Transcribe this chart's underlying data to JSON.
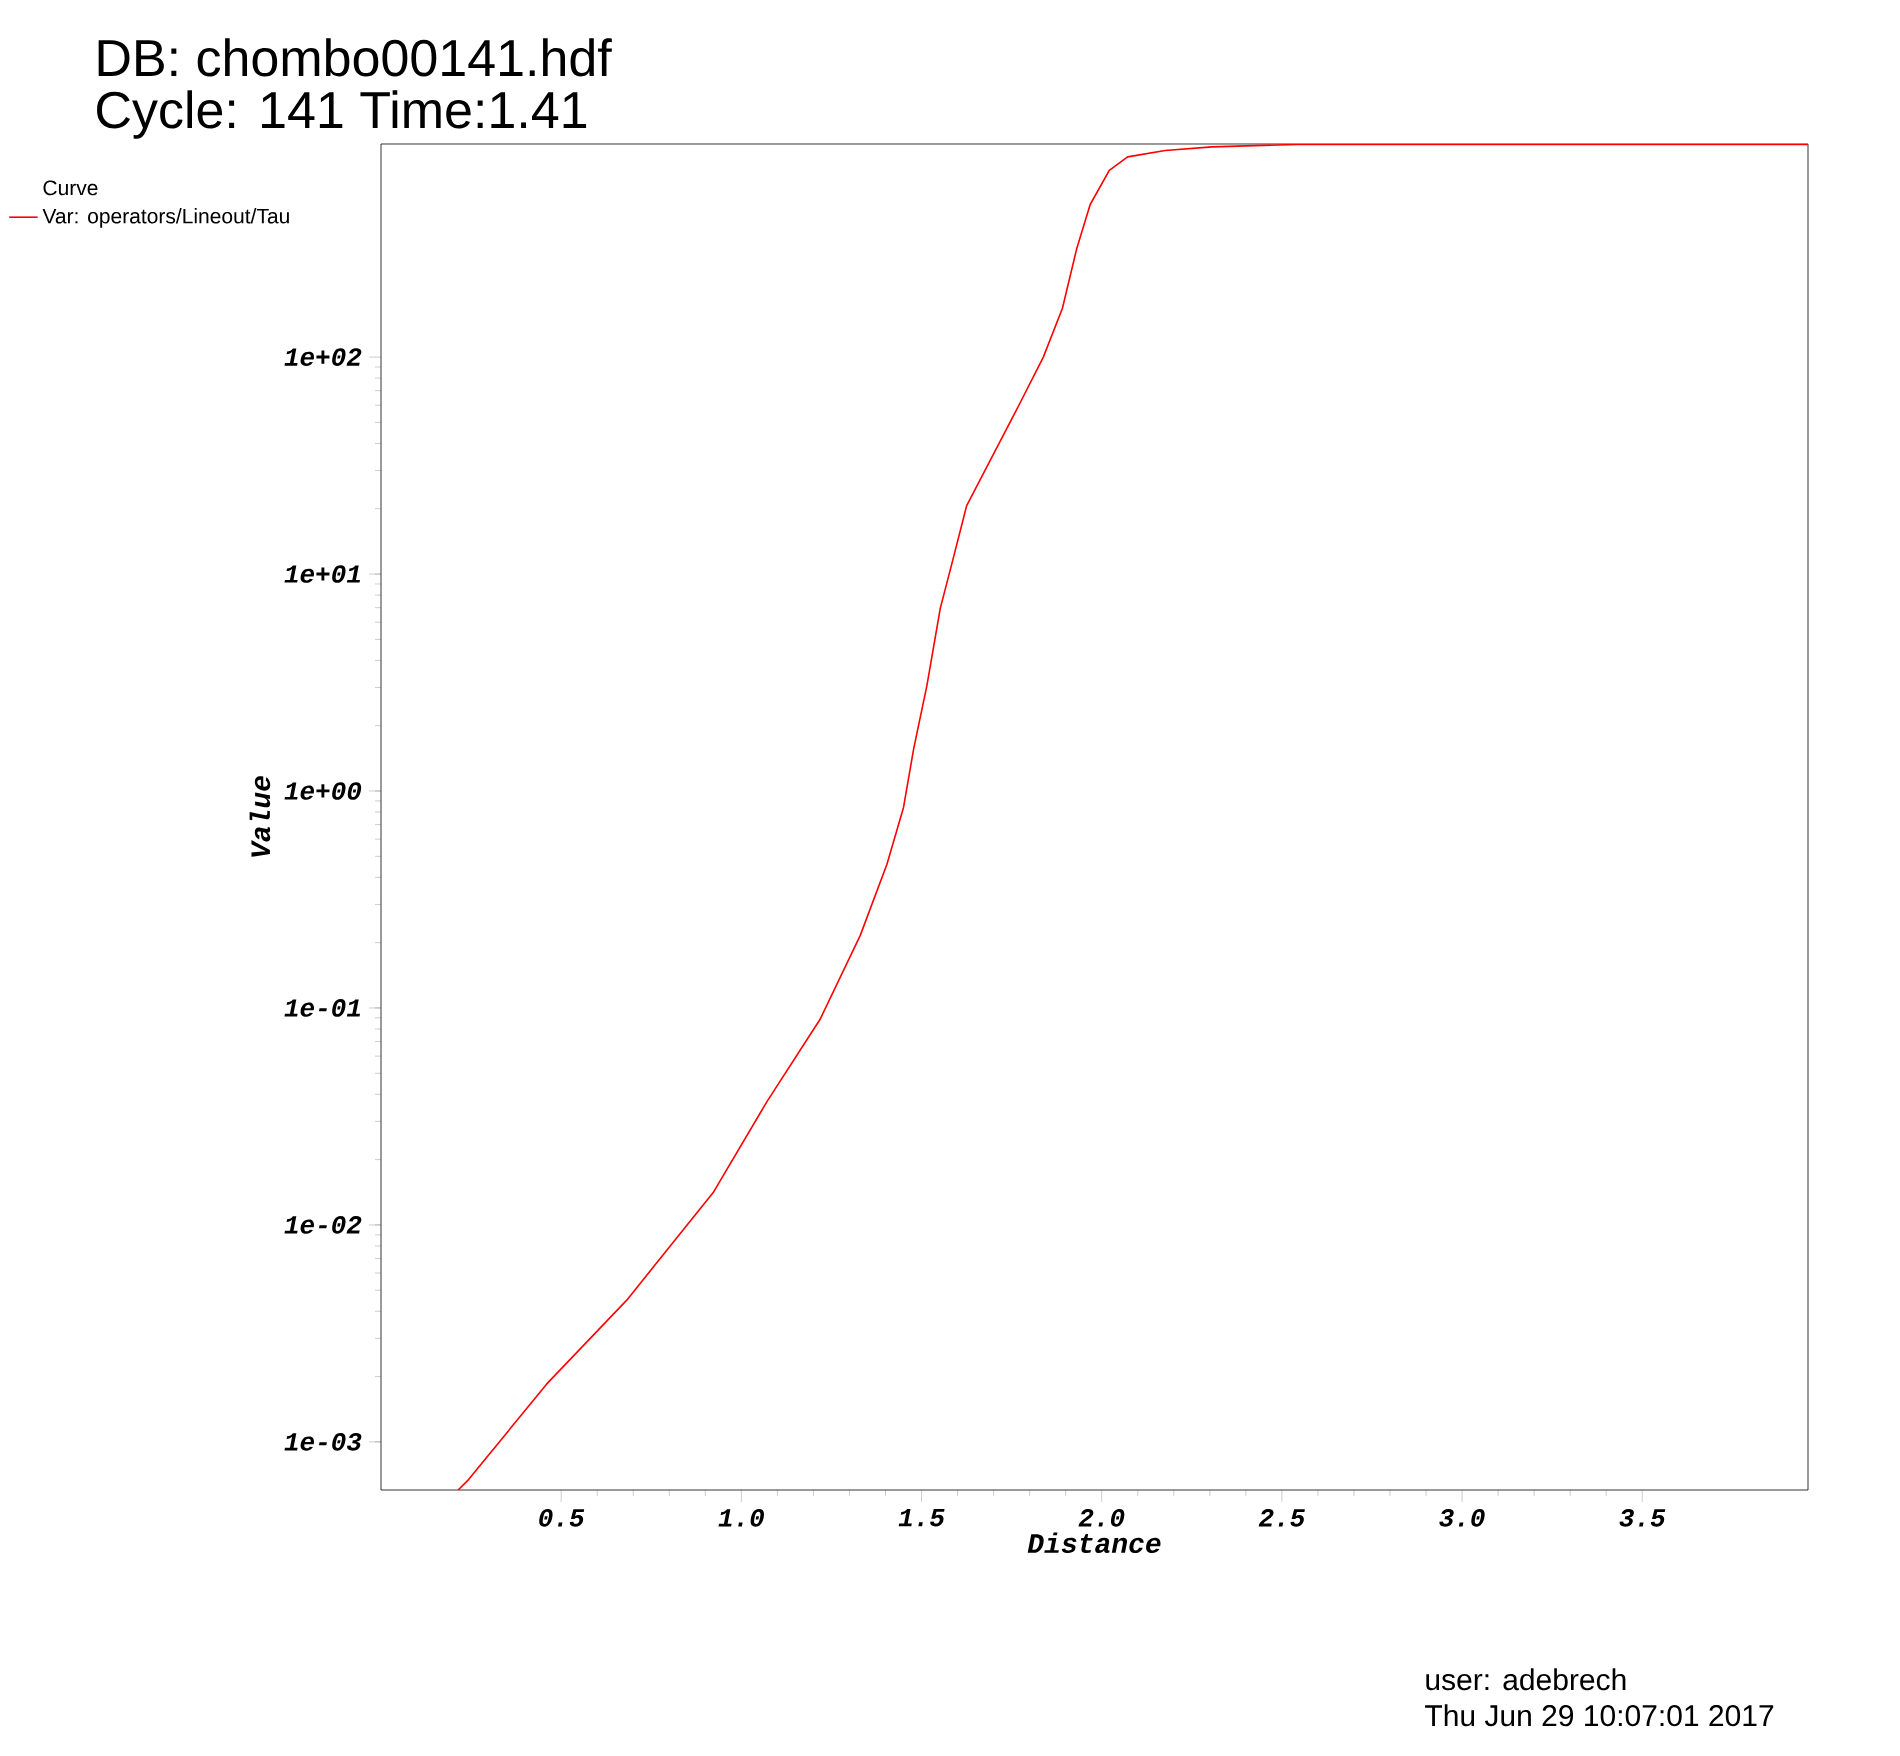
{
  "chart_data": {
    "type": "line",
    "title": "DB: chombo00141.hdf",
    "subtitle": "Cycle: 141 Time:1.41",
    "xlabel": "Distance",
    "ylabel": "Value",
    "legend_title": "Curve",
    "legend": "top left",
    "log": "y",
    "xlim": [
      0,
      3.96
    ],
    "ylim": [
      0.0006,
      960
    ],
    "xticks": [
      {
        "value": 0.5,
        "label": "0.5"
      },
      {
        "value": 1.0,
        "label": "1.0"
      },
      {
        "value": 1.5,
        "label": "1.5"
      },
      {
        "value": 2.0,
        "label": "2.0"
      },
      {
        "value": 2.5,
        "label": "2.5"
      },
      {
        "value": 3.0,
        "label": "3.0"
      },
      {
        "value": 3.5,
        "label": "3.5"
      }
    ],
    "yticks": [
      {
        "value": 0.001,
        "label": "1e-03"
      },
      {
        "value": 0.01,
        "label": "1e-02"
      },
      {
        "value": 0.1,
        "label": "1e-01"
      },
      {
        "value": 1,
        "label": "1e+00"
      },
      {
        "value": 10,
        "label": "1e+01"
      },
      {
        "value": 100,
        "label": "1e+02"
      }
    ],
    "annotations": [
      "user: adebrech",
      "Thu Jun 29 10:07:01 2017"
    ],
    "series": [
      {
        "name": "Var: operators/Lineout/Tau",
        "color": "#ff0000",
        "x": [
          0.214,
          0.243,
          0.46,
          0.682,
          0.923,
          1.071,
          1.219,
          1.33,
          1.404,
          1.45,
          1.478,
          1.515,
          1.552,
          1.589,
          1.625,
          1.67,
          1.761,
          1.838,
          1.891,
          1.93,
          1.968,
          2.021,
          2.072,
          2.176,
          2.306,
          2.54,
          3.96
        ],
        "values": [
          0.0006,
          0.00067,
          0.00185,
          0.0045,
          0.0142,
          0.037,
          0.089,
          0.216,
          0.46,
          0.84,
          1.56,
          3.07,
          6.95,
          12.0,
          20.6,
          28.7,
          56,
          100,
          168,
          313,
          505,
          726,
          837,
          896,
          931,
          955,
          955
        ]
      }
    ]
  }
}
